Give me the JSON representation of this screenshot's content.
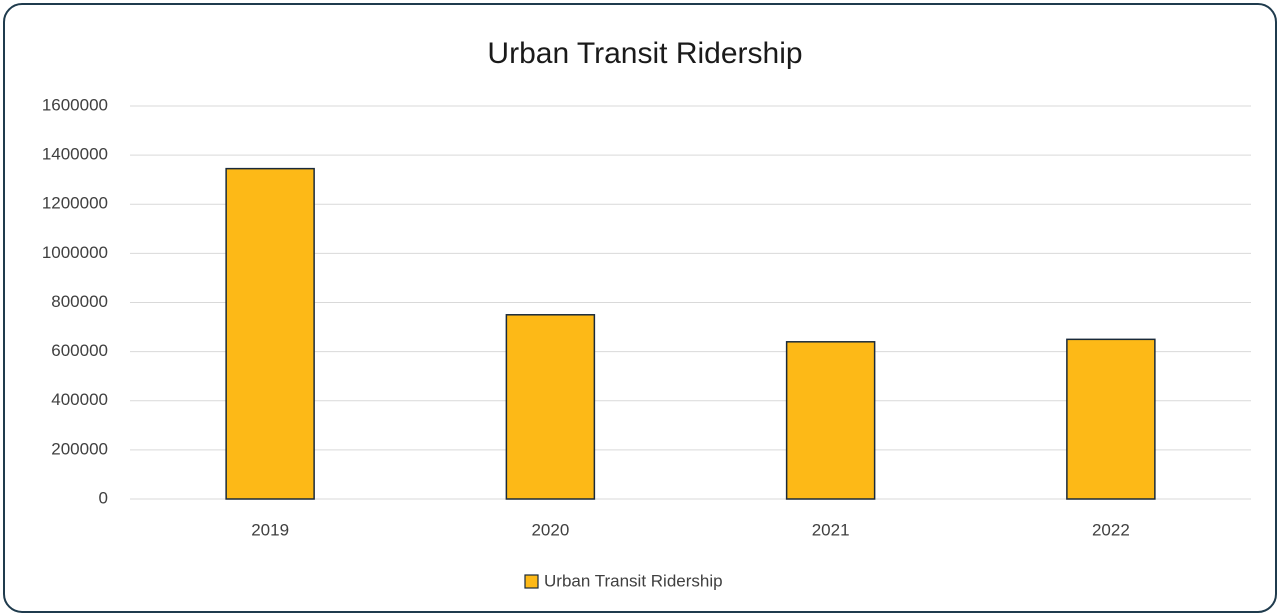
{
  "chart_data": {
    "type": "bar",
    "title": "Urban Transit Ridership",
    "categories": [
      "2019",
      "2020",
      "2021",
      "2022"
    ],
    "series": [
      {
        "name": "Urban Transit Ridership",
        "color": "#fdb917",
        "values": [
          1345000,
          750000,
          640000,
          650000
        ]
      }
    ],
    "ylim": [
      0,
      1600000
    ],
    "yticks": [
      0,
      200000,
      400000,
      600000,
      800000,
      1000000,
      1200000,
      1400000,
      1600000
    ],
    "grid": true,
    "legend": "bottom"
  }
}
